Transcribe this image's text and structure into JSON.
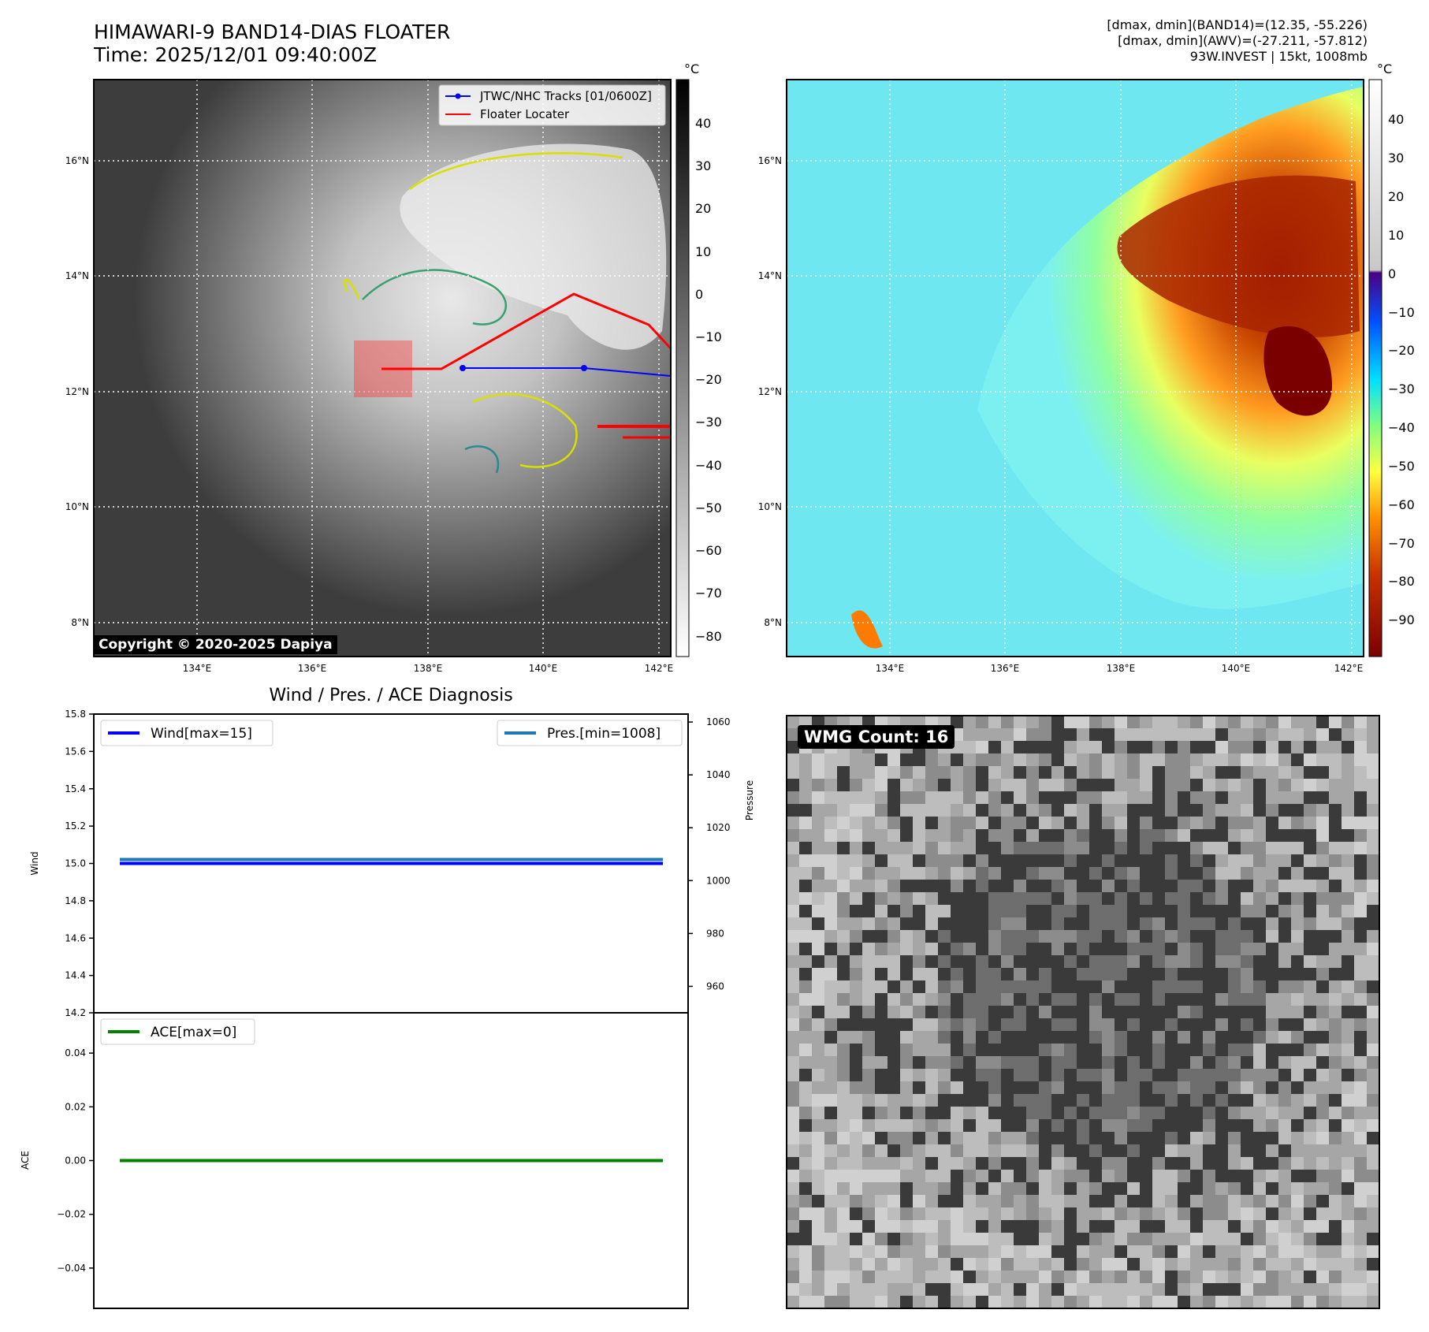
{
  "header": {
    "title_line1": "HIMAWARI-9 BAND14-DIAS FLOATER",
    "title_line2": "Time: 2025/12/01 09:40:00Z",
    "info_line1": "[dmax, dmin](BAND14)=(12.35, -55.226)",
    "info_line2": "[dmax, dmin](AWV)=(-27.211, -57.812)",
    "info_line3": "93W.INVEST | 15kt, 1008mb"
  },
  "colors": {
    "wind": "#0000ff",
    "pressure": "#1f77b4",
    "ace": "#008000",
    "jtwc_track": "#0000ff",
    "floater": "#ff0000",
    "ocean_warm": "#7cf0f0",
    "cloud_cold": "#8b0000"
  },
  "maps": {
    "unit_label": "°C",
    "copyright": "Copyright © 2020-2025 Dapiya",
    "legend_jtwc": "JTWC/NHC Tracks [01/0600Z]",
    "legend_floater": "Floater Locater",
    "lat_labels": [
      "16°N",
      "14°N",
      "12°N",
      "10°N",
      "8°N"
    ],
    "lon_labels": [
      "134°E",
      "136°E",
      "138°E",
      "140°E",
      "142°E"
    ],
    "gray_colorbar_ticks": [
      "40",
      "30",
      "20",
      "10",
      "0",
      "−10",
      "−20",
      "−30",
      "−40",
      "−50",
      "−60",
      "−70",
      "−80"
    ],
    "color_colorbar_ticks": [
      "40",
      "30",
      "20",
      "10",
      "0",
      "−10",
      "−20",
      "−30",
      "−40",
      "−50",
      "−60",
      "−70",
      "−80",
      "−90"
    ],
    "wmg_count": "WMG Count: 16"
  },
  "chart_data": [
    {
      "type": "line",
      "title": "Wind / Pres. / ACE Diagnosis",
      "ylabel": "Wind",
      "ylim": [
        14.2,
        15.8
      ],
      "yticks": [
        "15.8",
        "15.6",
        "15.4",
        "15.2",
        "15.0",
        "14.8",
        "14.6",
        "14.4",
        "14.2"
      ],
      "y2label": "Pressure",
      "y2lim": [
        950,
        1063
      ],
      "y2ticks": [
        "1060",
        "1040",
        "1020",
        "1000",
        "980",
        "960"
      ],
      "series": [
        {
          "name": "Wind[max=15]",
          "axis": "left",
          "values": [
            15,
            15
          ]
        },
        {
          "name": "Pres.[min=1008]",
          "axis": "right",
          "values": [
            1008,
            1008
          ]
        }
      ],
      "grid": false,
      "legend": "top-left / top-right"
    },
    {
      "type": "line",
      "ylabel": "ACE",
      "ylim": [
        -0.055,
        0.055
      ],
      "yticks": [
        "0.04",
        "0.02",
        "0.00",
        "−0.02",
        "−0.04"
      ],
      "series": [
        {
          "name": "ACE[max=0]",
          "values": [
            0,
            0
          ]
        }
      ],
      "grid": false,
      "legend": "top-left"
    }
  ]
}
